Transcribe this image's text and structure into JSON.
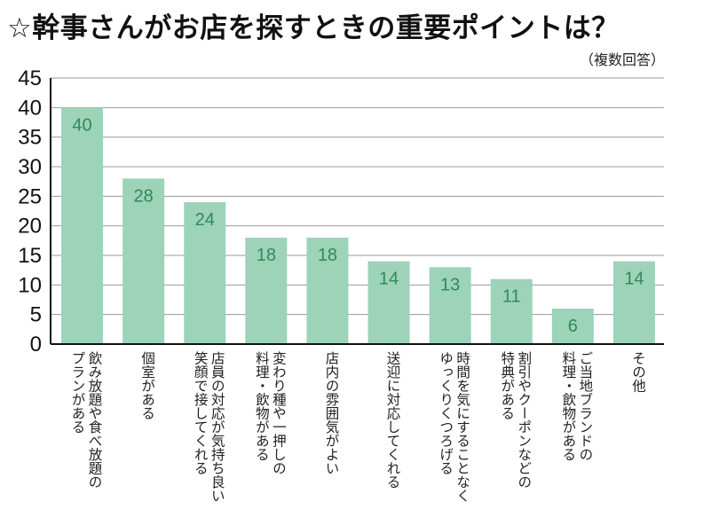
{
  "title": "☆幹事さんがお店を探すときの重要ポイントは？",
  "subtitle": "（複数回答）",
  "colors": {
    "bar": "#9dd3b9",
    "label": "#2f8a59",
    "grid": "#999999",
    "axis": "#111111"
  },
  "chart_data": {
    "type": "bar",
    "title": "☆幹事さんがお店を探すときの重要ポイントは？",
    "subtitle": "（複数回答）",
    "categories": [
      "飲み放題や食べ放題の\nプランがある",
      "個室がある",
      "店員の対応が気持ち良い\n笑顔で接してくれる",
      "変わり種や一押しの\n料理・飲物がある",
      "店内の雰囲気がよい",
      "送迎に対応してくれる",
      "時間を気にすることなく\nゆっくりくつろげる",
      "割引やクーポンなどの\n特典がある",
      "ご当地ブランドの\n料理・飲物がある",
      "その他"
    ],
    "values": [
      40,
      28,
      24,
      18,
      18,
      14,
      13,
      11,
      6,
      14
    ],
    "yticks": [
      "0",
      "5",
      "10",
      "15",
      "20",
      "25",
      "30",
      "35",
      "40",
      "45"
    ],
    "ylim": [
      0,
      45
    ],
    "grid": true,
    "data_labels": true
  }
}
